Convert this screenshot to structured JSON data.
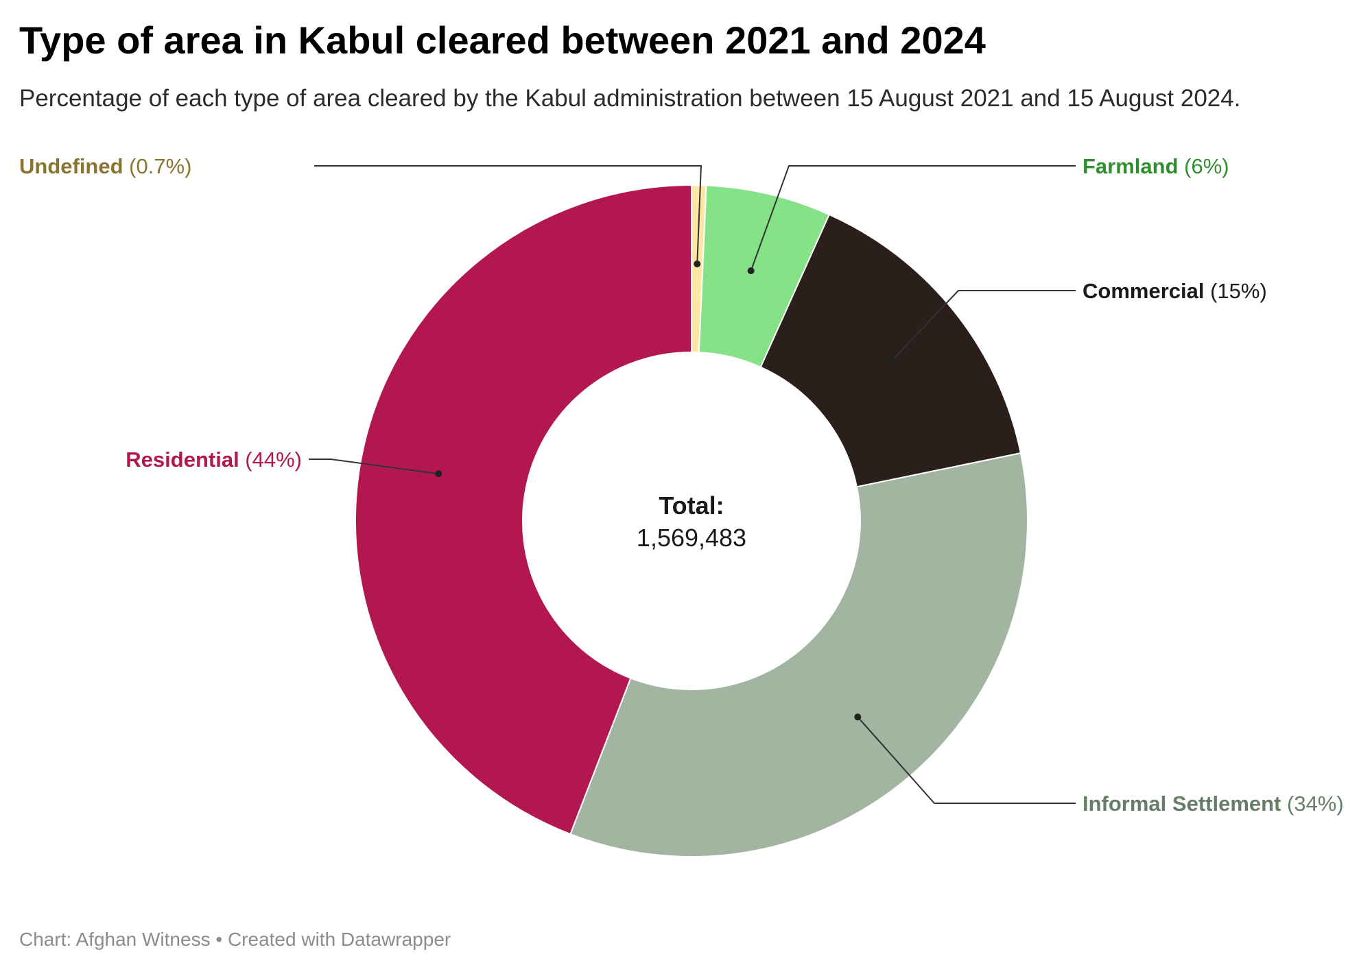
{
  "title": "Type of area in Kabul cleared between 2021 and 2024",
  "subtitle": "Percentage of each type of area cleared by the Kabul administration between 15 August 2021 and 15 August 2024.",
  "center": {
    "label": "Total:",
    "value": "1,569,483"
  },
  "footer": {
    "source": "Chart: Afghan Witness",
    "separator": "•",
    "credit": "Created with Datawrapper"
  },
  "chart_data": {
    "type": "pie",
    "variant": "donut",
    "title": "Type of area in Kabul cleared between 2021 and 2024",
    "subtitle": "Percentage of each type of area cleared by the Kabul administration between 15 August 2021 and 15 August 2024.",
    "total": 1569483,
    "slices": [
      {
        "label": "Undefined",
        "value": 0.7,
        "display": "(0.7%)",
        "color": "#fde7a2",
        "text_color": "#8a7530"
      },
      {
        "label": "Farmland",
        "value": 6,
        "display": "(6%)",
        "color": "#86e286",
        "text_color": "#2f8f2f"
      },
      {
        "label": "Commercial",
        "value": 15,
        "display": "(15%)",
        "color": "#2a1f1b",
        "text_color": "#1a1a1a"
      },
      {
        "label": "Informal Settlement",
        "value": 34,
        "display": "(34%)",
        "color": "#a2b5a1",
        "text_color": "#687d67"
      },
      {
        "label": "Residential",
        "value": 44,
        "display": "(44%)",
        "color": "#b2184f",
        "text_color": "#b2184f"
      }
    ]
  }
}
